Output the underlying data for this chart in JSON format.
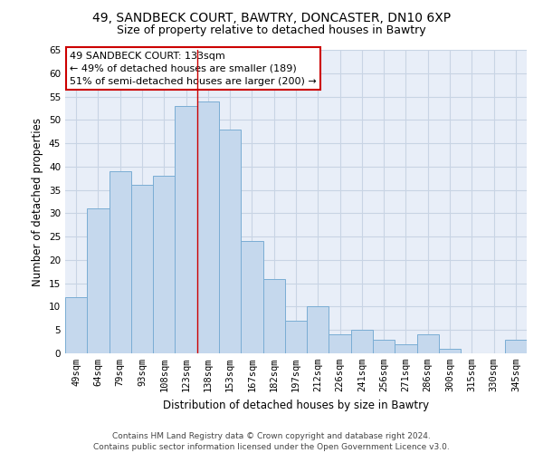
{
  "title1": "49, SANDBECK COURT, BAWTRY, DONCASTER, DN10 6XP",
  "title2": "Size of property relative to detached houses in Bawtry",
  "xlabel": "Distribution of detached houses by size in Bawtry",
  "ylabel": "Number of detached properties",
  "categories": [
    "49sqm",
    "64sqm",
    "79sqm",
    "93sqm",
    "108sqm",
    "123sqm",
    "138sqm",
    "153sqm",
    "167sqm",
    "182sqm",
    "197sqm",
    "212sqm",
    "226sqm",
    "241sqm",
    "256sqm",
    "271sqm",
    "286sqm",
    "300sqm",
    "315sqm",
    "330sqm",
    "345sqm"
  ],
  "values": [
    12,
    31,
    39,
    36,
    38,
    53,
    54,
    48,
    24,
    16,
    7,
    10,
    4,
    5,
    3,
    2,
    4,
    1,
    0,
    0,
    3
  ],
  "bar_color": "#c5d8ed",
  "bar_edgecolor": "#7aadd4",
  "annotation_text_line1": "49 SANDBECK COURT: 133sqm",
  "annotation_text_line2": "← 49% of detached houses are smaller (189)",
  "annotation_text_line3": "51% of semi-detached houses are larger (200) →",
  "annotation_box_color": "#ffffff",
  "annotation_box_edgecolor": "#cc0000",
  "vline_color": "#cc0000",
  "grid_color": "#c8d4e4",
  "background_color": "#e8eef8",
  "ylim": [
    0,
    65
  ],
  "yticks": [
    0,
    5,
    10,
    15,
    20,
    25,
    30,
    35,
    40,
    45,
    50,
    55,
    60,
    65
  ],
  "footer_line1": "Contains HM Land Registry data © Crown copyright and database right 2024.",
  "footer_line2": "Contains public sector information licensed under the Open Government Licence v3.0.",
  "title_fontsize": 10,
  "subtitle_fontsize": 9,
  "xlabel_fontsize": 8.5,
  "ylabel_fontsize": 8.5,
  "tick_fontsize": 7.5,
  "annotation_fontsize": 8,
  "footer_fontsize": 6.5
}
